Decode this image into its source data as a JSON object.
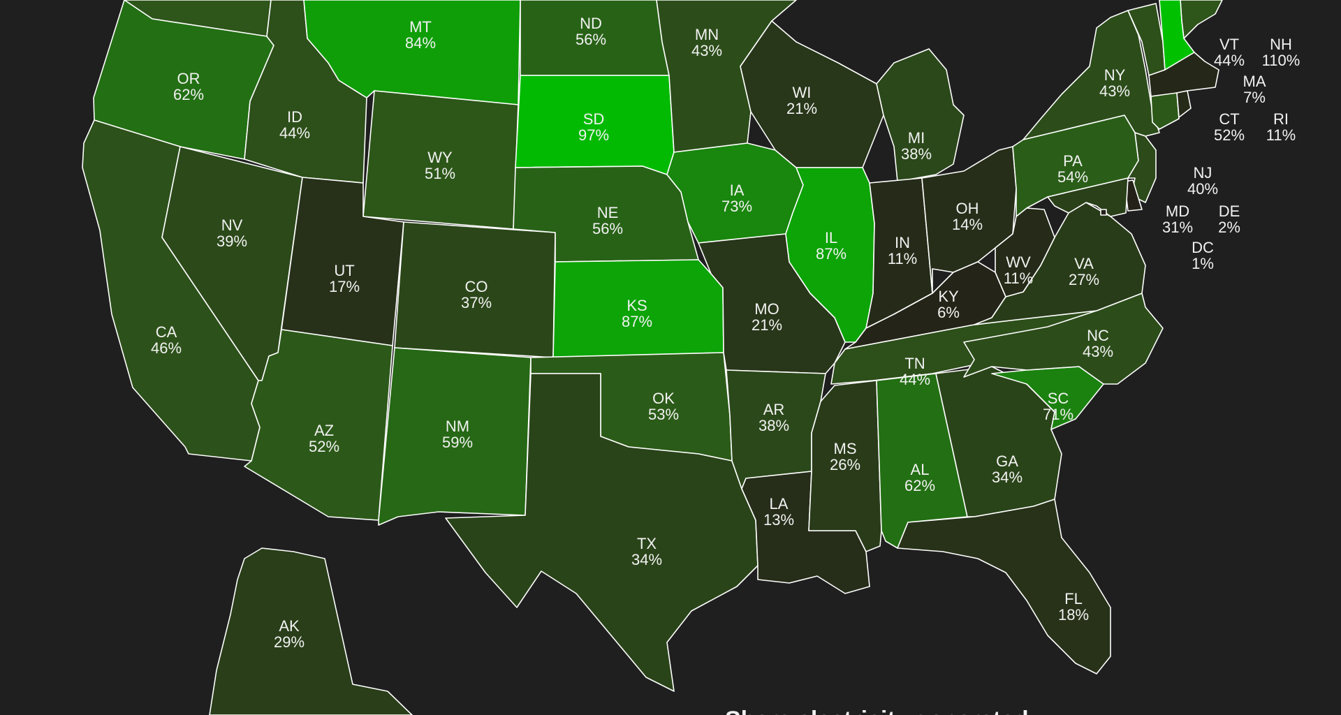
{
  "caption": "Share electricity generated",
  "colors": {
    "background": "#1f1f1f",
    "border": "#ffffff",
    "scale_low": "#231f18",
    "scale_high": "#00c000"
  },
  "states": [
    {
      "code": "WA",
      "value": null
    },
    {
      "code": "OR",
      "value": 62
    },
    {
      "code": "CA",
      "value": 46
    },
    {
      "code": "NV",
      "value": 39
    },
    {
      "code": "ID",
      "value": 44
    },
    {
      "code": "MT",
      "value": 84
    },
    {
      "code": "WY",
      "value": 51
    },
    {
      "code": "UT",
      "value": 17
    },
    {
      "code": "AZ",
      "value": 52
    },
    {
      "code": "CO",
      "value": 37
    },
    {
      "code": "NM",
      "value": 59
    },
    {
      "code": "ND",
      "value": 56
    },
    {
      "code": "SD",
      "value": 97
    },
    {
      "code": "NE",
      "value": 56
    },
    {
      "code": "KS",
      "value": 87
    },
    {
      "code": "OK",
      "value": 53
    },
    {
      "code": "TX",
      "value": 34
    },
    {
      "code": "MN",
      "value": 43
    },
    {
      "code": "IA",
      "value": 73
    },
    {
      "code": "MO",
      "value": 21
    },
    {
      "code": "AR",
      "value": 38
    },
    {
      "code": "LA",
      "value": 13
    },
    {
      "code": "WI",
      "value": 21
    },
    {
      "code": "IL",
      "value": 87
    },
    {
      "code": "MI",
      "value": 38
    },
    {
      "code": "IN",
      "value": 11
    },
    {
      "code": "OH",
      "value": 14
    },
    {
      "code": "KY",
      "value": 6
    },
    {
      "code": "TN",
      "value": 44
    },
    {
      "code": "MS",
      "value": 26
    },
    {
      "code": "AL",
      "value": 62
    },
    {
      "code": "GA",
      "value": 34
    },
    {
      "code": "FL",
      "value": 18
    },
    {
      "code": "SC",
      "value": 71
    },
    {
      "code": "NC",
      "value": 43
    },
    {
      "code": "VA",
      "value": 27
    },
    {
      "code": "WV",
      "value": 11
    },
    {
      "code": "PA",
      "value": 54
    },
    {
      "code": "NY",
      "value": 43
    },
    {
      "code": "ME",
      "value": null
    },
    {
      "code": "AK",
      "value": 29
    },
    {
      "code": "VT",
      "value": 44
    },
    {
      "code": "NH",
      "value": 110
    },
    {
      "code": "MA",
      "value": 7
    },
    {
      "code": "CT",
      "value": 52
    },
    {
      "code": "RI",
      "value": 11
    },
    {
      "code": "NJ",
      "value": 40
    },
    {
      "code": "MD",
      "value": 31
    },
    {
      "code": "DE",
      "value": 2
    },
    {
      "code": "DC",
      "value": 1
    }
  ]
}
